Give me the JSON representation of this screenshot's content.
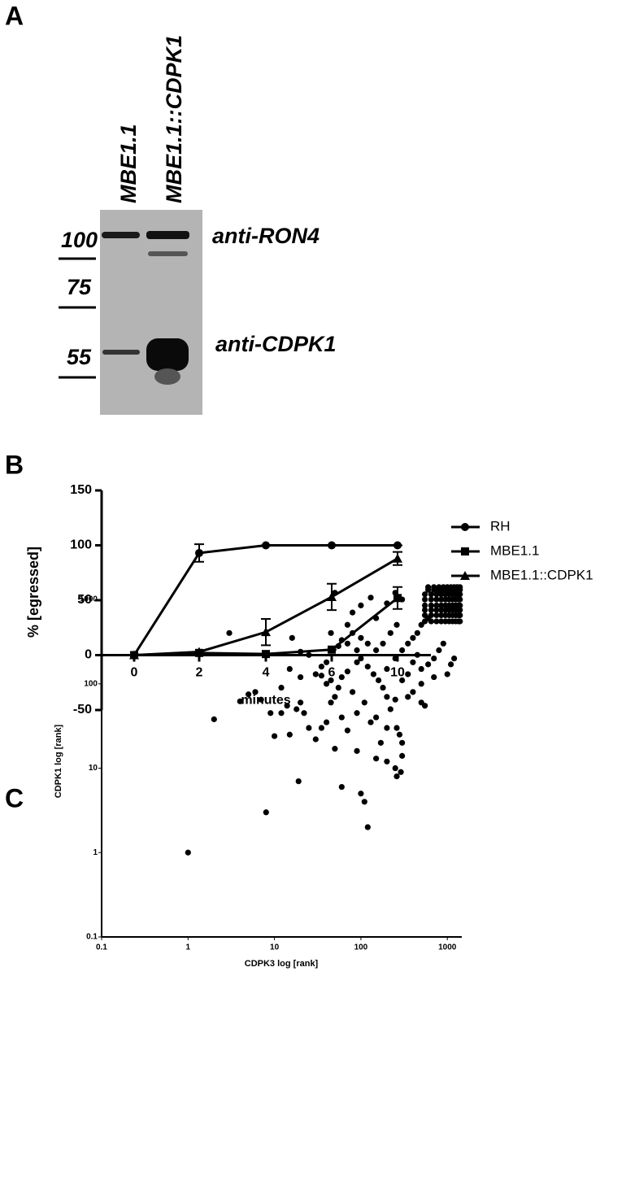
{
  "panel_labels": [
    "A",
    "B",
    "C"
  ],
  "blot": {
    "lanes": [
      "MBE1.1",
      "MBE1.1::CDPK1"
    ],
    "markers": [
      "100",
      "75",
      "55"
    ],
    "bands": [
      "anti-RON4",
      "anti-CDPK1"
    ]
  },
  "chart_data": [
    {
      "type": "line",
      "categories": [
        "0",
        "2",
        "4",
        "6",
        "10"
      ],
      "x_label": "minutes",
      "y_label": "% [egressed]",
      "ylim": [
        -50,
        150
      ],
      "yticks": [
        -50,
        0,
        50,
        100,
        150
      ],
      "legend": "right",
      "series": [
        {
          "name": "RH",
          "color": "#000000",
          "marker": "circle",
          "values": [
            0,
            93,
            100,
            100,
            100
          ],
          "errors": [
            0,
            8,
            0,
            0,
            0
          ]
        },
        {
          "name": "MBE1.1",
          "color": "#000000",
          "marker": "square",
          "values": [
            0,
            2,
            1,
            5,
            52
          ],
          "errors": [
            0,
            0,
            0,
            0,
            10
          ]
        },
        {
          "name": "MBE1.1::CDPK1",
          "color": "#000000",
          "marker": "triangle",
          "values": [
            0,
            3,
            21,
            53,
            88
          ],
          "errors": [
            0,
            0,
            12,
            12,
            6
          ]
        }
      ]
    },
    {
      "type": "scatter",
      "x_label": "CDPK3 log [rank]",
      "y_label": "CDPK1 log [rank]",
      "log_x": true,
      "log_y": true,
      "color": "#000000",
      "xlim": [
        0.1,
        1470
      ],
      "ylim": [
        0.1,
        1460
      ],
      "xticks": [
        0.1,
        1,
        10,
        100,
        1000
      ],
      "yticks": [
        0.1,
        1,
        10,
        100,
        1000
      ],
      "x": [
        1,
        2,
        3,
        8,
        19,
        120,
        100,
        110,
        60,
        290,
        260,
        250,
        200,
        150,
        50,
        90,
        30,
        70,
        10,
        15,
        25,
        12,
        14,
        20,
        18,
        22,
        9,
        4,
        5,
        6,
        7,
        15,
        16,
        12,
        20,
        25,
        30,
        35,
        40,
        45,
        50,
        45,
        55,
        60,
        70,
        80,
        100,
        130,
        150,
        200,
        250,
        300,
        20,
        35,
        40,
        50,
        60,
        80,
        90,
        110,
        130,
        150,
        170,
        200,
        220,
        260,
        280,
        300,
        300,
        250,
        200,
        180,
        160,
        140,
        120,
        100,
        90,
        70,
        60,
        55,
        45,
        40,
        35,
        200,
        250,
        300,
        350,
        400,
        450,
        500,
        600,
        700,
        800,
        900,
        1000,
        1100,
        1200,
        700,
        500,
        400,
        350,
        500,
        550,
        300,
        350,
        400,
        450,
        500,
        600,
        150,
        180,
        220,
        260,
        80,
        70,
        100,
        120,
        90,
        550,
        650,
        750,
        850,
        950,
        1050,
        1150,
        1250,
        1350,
        1400,
        550,
        650,
        750,
        850,
        950,
        1050,
        1150,
        1250,
        1350,
        1400,
        550,
        650,
        750,
        850,
        950,
        1050,
        1150,
        1250,
        1350,
        1400,
        550,
        650,
        750,
        850,
        950,
        1050,
        1150,
        1250,
        1350,
        1400,
        550,
        650,
        750,
        850,
        950,
        1050,
        1150,
        1250,
        1350,
        1400,
        550,
        650,
        750,
        850,
        950,
        1050,
        1150,
        1250,
        1350,
        1400,
        600,
        700,
        800,
        900,
        1000,
        1100,
        1200,
        1300,
        1400,
        600,
        700,
        800,
        900,
        1000,
        1100,
        1200,
        1300,
        1400
      ],
      "values": [
        1,
        38,
        400,
        3,
        7,
        2,
        5,
        4,
        6,
        9,
        8,
        10,
        12,
        13,
        17,
        16,
        22,
        28,
        24,
        25,
        30,
        45,
        55,
        60,
        50,
        45,
        45,
        62,
        75,
        80,
        65,
        150,
        350,
        90,
        120,
        220,
        130,
        125,
        100,
        110,
        1200,
        400,
        280,
        330,
        500,
        700,
        850,
        1050,
        600,
        900,
        1200,
        1000,
        240,
        160,
        180,
        70,
        40,
        80,
        45,
        60,
        35,
        40,
        20,
        30,
        50,
        30,
        25,
        20,
        14,
        65,
        70,
        90,
        110,
        130,
        160,
        200,
        250,
        140,
        120,
        90,
        60,
        35,
        30,
        150,
        200,
        250,
        300,
        180,
        220,
        150,
        170,
        200,
        250,
        300,
        130,
        170,
        200,
        120,
        100,
        80,
        70,
        60,
        55,
        110,
        130,
        350,
        400,
        500,
        600,
        250,
        300,
        400,
        500,
        400,
        300,
        350,
        300,
        180,
        550,
        550,
        550,
        550,
        550,
        550,
        550,
        550,
        550,
        550,
        650,
        650,
        650,
        650,
        650,
        650,
        650,
        650,
        650,
        650,
        750,
        750,
        750,
        750,
        750,
        750,
        750,
        750,
        750,
        750,
        850,
        850,
        850,
        850,
        850,
        850,
        850,
        850,
        850,
        850,
        1000,
        1000,
        1000,
        1000,
        1000,
        1000,
        1000,
        1000,
        1000,
        1000,
        1150,
        1150,
        1150,
        1150,
        1150,
        1150,
        1150,
        1150,
        1150,
        1150,
        1300,
        1300,
        1300,
        1300,
        1300,
        1300,
        1300,
        1300,
        1300,
        1400,
        1400,
        1400,
        1400,
        1400,
        1400,
        1400,
        1400,
        1400
      ]
    }
  ]
}
